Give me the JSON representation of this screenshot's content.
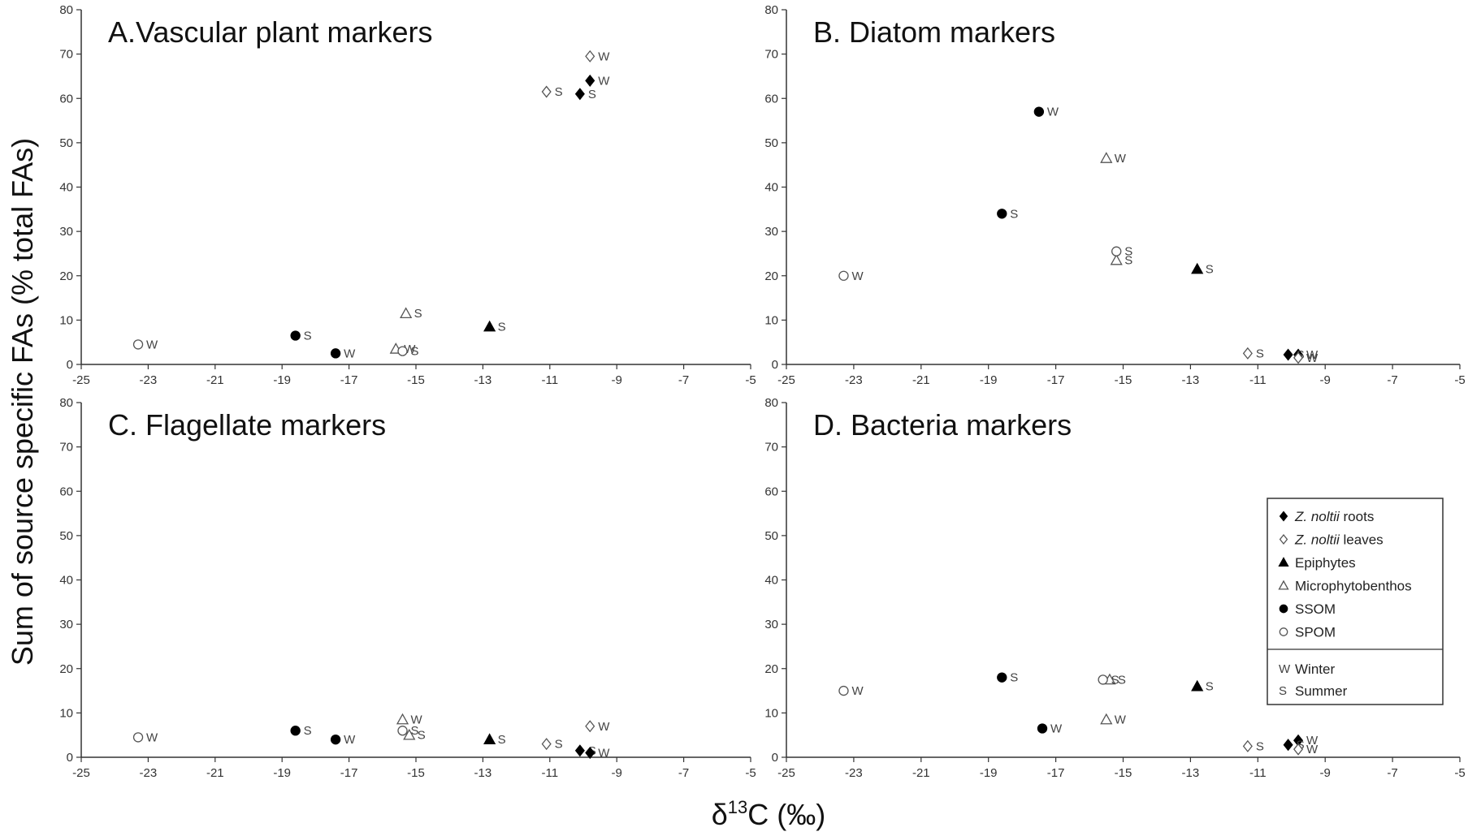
{
  "figure": {
    "ylabel": "Sum of source specific FAs (% total FAs)",
    "xlabel_prefix": "δ",
    "xlabel_sup": "13",
    "xlabel_suffix": "C (‰)"
  },
  "chart_data": [
    {
      "type": "scatter",
      "title": "A.Vascular plant markers",
      "xlim": [
        -25,
        -5
      ],
      "ylim": [
        0,
        80
      ],
      "xticks": [
        -25,
        -23,
        -21,
        -19,
        -17,
        -15,
        -13,
        -11,
        -9,
        -7,
        -5
      ],
      "yticks": [
        0,
        10,
        20,
        30,
        40,
        50,
        60,
        70,
        80
      ],
      "points": [
        {
          "source": "Z. noltii roots",
          "season": "W",
          "x": -9.8,
          "y": 64
        },
        {
          "source": "Z. noltii roots",
          "season": "S",
          "x": -10.1,
          "y": 61
        },
        {
          "source": "Z. noltii leaves",
          "season": "W",
          "x": -9.8,
          "y": 69.5
        },
        {
          "source": "Z. noltii leaves",
          "season": "S",
          "x": -11.1,
          "y": 61.5
        },
        {
          "source": "Epiphytes",
          "season": "S",
          "x": -12.8,
          "y": 8.5
        },
        {
          "source": "Microphytobenthos",
          "season": "S",
          "x": -15.3,
          "y": 11.5
        },
        {
          "source": "Microphytobenthos",
          "season": "W",
          "x": -15.6,
          "y": 3.5
        },
        {
          "source": "SSOM",
          "season": "S",
          "x": -18.6,
          "y": 6.5
        },
        {
          "source": "SSOM",
          "season": "W",
          "x": -17.4,
          "y": 2.5
        },
        {
          "source": "SPOM",
          "season": "W",
          "x": -23.3,
          "y": 4.5
        },
        {
          "source": "SPOM",
          "season": "S",
          "x": -15.4,
          "y": 3
        }
      ]
    },
    {
      "type": "scatter",
      "title": "B. Diatom markers",
      "xlim": [
        -25,
        -5
      ],
      "ylim": [
        0,
        80
      ],
      "xticks": [
        -25,
        -23,
        -21,
        -19,
        -17,
        -15,
        -13,
        -11,
        -9,
        -7,
        -5
      ],
      "yticks": [
        0,
        10,
        20,
        30,
        40,
        50,
        60,
        70,
        80
      ],
      "points": [
        {
          "source": "Z. noltii roots",
          "season": "W",
          "x": -9.8,
          "y": 2.2
        },
        {
          "source": "Z. noltii roots",
          "season": "S",
          "x": -10.1,
          "y": 2.2
        },
        {
          "source": "Z. noltii leaves",
          "season": "W",
          "x": -9.8,
          "y": 1.5
        },
        {
          "source": "Z. noltii leaves",
          "season": "S",
          "x": -11.3,
          "y": 2.5
        },
        {
          "source": "Epiphytes",
          "season": "S",
          "x": -12.8,
          "y": 21.5
        },
        {
          "source": "Microphytobenthos",
          "season": "W",
          "x": -15.5,
          "y": 46.5
        },
        {
          "source": "Microphytobenthos",
          "season": "S",
          "x": -15.2,
          "y": 23.5
        },
        {
          "source": "SSOM",
          "season": "W",
          "x": -17.5,
          "y": 57
        },
        {
          "source": "SSOM",
          "season": "S",
          "x": -18.6,
          "y": 34
        },
        {
          "source": "SPOM",
          "season": "W",
          "x": -23.3,
          "y": 20
        },
        {
          "source": "SPOM",
          "season": "S",
          "x": -15.2,
          "y": 25.5
        }
      ]
    },
    {
      "type": "scatter",
      "title": "C. Flagellate markers",
      "xlim": [
        -25,
        -5
      ],
      "ylim": [
        0,
        80
      ],
      "xticks": [
        -25,
        -23,
        -21,
        -19,
        -17,
        -15,
        -13,
        -11,
        -9,
        -7,
        -5
      ],
      "yticks": [
        0,
        10,
        20,
        30,
        40,
        50,
        60,
        70,
        80
      ],
      "points": [
        {
          "source": "Z. noltii roots",
          "season": "S",
          "x": -10.1,
          "y": 1.5
        },
        {
          "source": "Z. noltii roots",
          "season": "W",
          "x": -9.8,
          "y": 1
        },
        {
          "source": "Z. noltii leaves",
          "season": "W",
          "x": -9.8,
          "y": 7
        },
        {
          "source": "Z. noltii leaves",
          "season": "S",
          "x": -11.1,
          "y": 3
        },
        {
          "source": "Epiphytes",
          "season": "S",
          "x": -12.8,
          "y": 4
        },
        {
          "source": "Microphytobenthos",
          "season": "W",
          "x": -15.4,
          "y": 8.5
        },
        {
          "source": "Microphytobenthos",
          "season": "S",
          "x": -15.2,
          "y": 5
        },
        {
          "source": "SSOM",
          "season": "S",
          "x": -18.6,
          "y": 6
        },
        {
          "source": "SSOM",
          "season": "W",
          "x": -17.4,
          "y": 4
        },
        {
          "source": "SPOM",
          "season": "W",
          "x": -23.3,
          "y": 4.5
        },
        {
          "source": "SPOM",
          "season": "S",
          "x": -15.4,
          "y": 6
        }
      ]
    },
    {
      "type": "scatter",
      "title": "D. Bacteria markers",
      "xlim": [
        -25,
        -5
      ],
      "ylim": [
        0,
        80
      ],
      "xticks": [
        -25,
        -23,
        -21,
        -19,
        -17,
        -15,
        -13,
        -11,
        -9,
        -7,
        -5
      ],
      "yticks": [
        0,
        10,
        20,
        30,
        40,
        50,
        60,
        70,
        80
      ],
      "points": [
        {
          "source": "Z. noltii roots",
          "season": "W",
          "x": -9.8,
          "y": 3.8
        },
        {
          "source": "Z. noltii roots",
          "season": "S",
          "x": -10.1,
          "y": 2.8
        },
        {
          "source": "Z. noltii leaves",
          "season": "W",
          "x": -9.8,
          "y": 1.8
        },
        {
          "source": "Z. noltii leaves",
          "season": "S",
          "x": -11.3,
          "y": 2.5
        },
        {
          "source": "Epiphytes",
          "season": "S",
          "x": -12.8,
          "y": 16
        },
        {
          "source": "Microphytobenthos",
          "season": "S",
          "x": -15.4,
          "y": 17.5
        },
        {
          "source": "Microphytobenthos",
          "season": "W",
          "x": -15.5,
          "y": 8.5
        },
        {
          "source": "SSOM",
          "season": "S",
          "x": -18.6,
          "y": 18
        },
        {
          "source": "SSOM",
          "season": "W",
          "x": -17.4,
          "y": 6.5
        },
        {
          "source": "SPOM",
          "season": "W",
          "x": -23.3,
          "y": 15
        },
        {
          "source": "SPOM",
          "season": "S",
          "x": -15.6,
          "y": 17.5
        }
      ]
    }
  ],
  "legend": {
    "position": "right",
    "sources": [
      {
        "marker": "diamond-filled",
        "italic": "Z. noltii",
        "text": " roots"
      },
      {
        "marker": "diamond-open",
        "italic": "Z. noltii",
        "text": " leaves"
      },
      {
        "marker": "triangle-filled",
        "italic": "",
        "text": "Epiphytes"
      },
      {
        "marker": "triangle-open",
        "italic": "",
        "text": "Microphytobenthos"
      },
      {
        "marker": "circle-filled",
        "italic": "",
        "text": "SSOM"
      },
      {
        "marker": "circle-open",
        "italic": "",
        "text": "SPOM"
      }
    ],
    "seasons": [
      {
        "code": "W",
        "text": "Winter"
      },
      {
        "code": "S",
        "text": "Summer"
      }
    ]
  },
  "markers": {
    "Z. noltii roots": "diamond-filled",
    "Z. noltii leaves": "diamond-open",
    "Epiphytes": "triangle-filled",
    "Microphytobenthos": "triangle-open",
    "SSOM": "circle-filled",
    "SPOM": "circle-open"
  }
}
